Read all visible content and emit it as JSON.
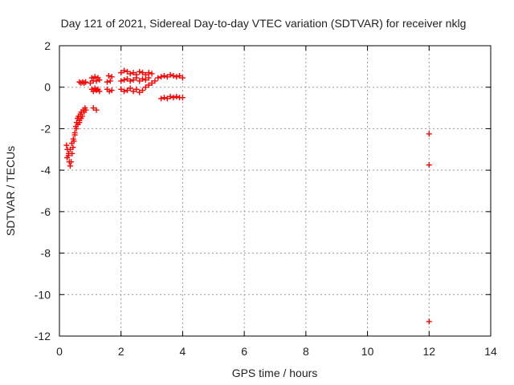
{
  "chart_data": {
    "type": "scatter",
    "title": "Day 121 of 2021, Sidereal Day-to-day VTEC variation (SDTVAR) for receiver nklg",
    "xlabel": "GPS time / hours",
    "ylabel": "SDTVAR / TECUs",
    "xlim": [
      0,
      14
    ],
    "ylim": [
      -12,
      2
    ],
    "xticks": [
      0,
      2,
      4,
      6,
      8,
      10,
      12,
      14
    ],
    "yticks": [
      2,
      0,
      -2,
      -4,
      -6,
      -8,
      -10,
      -12
    ],
    "grid": true,
    "marker": "plus",
    "color": "#ff0000",
    "series": [
      {
        "name": "SDTVAR",
        "segments": [
          {
            "x": [
              0.23,
              0.26,
              0.29,
              0.32,
              0.35,
              0.38,
              0.41,
              0.44,
              0.47,
              0.5,
              0.53,
              0.56,
              0.59,
              0.62,
              0.65,
              0.68,
              0.71,
              0.74,
              0.77,
              0.8,
              0.83,
              0.86
            ],
            "y": [
              -2.8,
              -3.0,
              -3.3,
              -3.6,
              -3.8,
              -3.6,
              -3.2,
              -2.9,
              -2.6,
              -2.2,
              -1.9,
              -1.7,
              -1.5,
              -1.4,
              -1.6,
              -1.3,
              -1.2,
              -1.4,
              -1.1,
              -1.2,
              -1.0,
              -1.1
            ]
          },
          {
            "x": [
              0.25,
              0.3,
              0.35,
              0.4,
              0.45,
              0.5,
              0.55,
              0.6,
              0.65,
              0.7
            ],
            "y": [
              -3.4,
              -3.2,
              -3.0,
              -2.7,
              -2.5,
              -2.3,
              -2.0,
              -1.8,
              -1.7,
              -1.5
            ]
          },
          {
            "x": [
              0.65,
              0.7,
              0.75,
              0.8,
              0.85
            ],
            "y": [
              0.25,
              0.2,
              0.25,
              0.2,
              0.25
            ]
          },
          {
            "x": [
              1.0,
              1.05,
              1.1,
              1.15,
              1.2,
              1.25,
              1.3
            ],
            "y": [
              0.2,
              0.45,
              0.3,
              0.5,
              0.3,
              0.45,
              0.35
            ]
          },
          {
            "x": [
              1.05,
              1.1,
              1.15,
              1.2,
              1.25,
              1.3
            ],
            "y": [
              -0.1,
              -0.2,
              -0.05,
              -0.15,
              -0.1,
              -0.2
            ]
          },
          {
            "x": [
              1.1,
              1.2
            ],
            "y": [
              -1.0,
              -1.1
            ]
          },
          {
            "x": [
              1.55,
              1.6,
              1.65,
              1.7
            ],
            "y": [
              0.25,
              0.55,
              0.3,
              0.5
            ]
          },
          {
            "x": [
              1.55,
              1.62,
              1.7
            ],
            "y": [
              -0.1,
              -0.2,
              -0.15
            ]
          },
          {
            "x": [
              2.0,
              2.1,
              2.2,
              2.3,
              2.4,
              2.5,
              2.6,
              2.7,
              2.8,
              2.9,
              3.0
            ],
            "y": [
              0.7,
              0.8,
              0.75,
              0.65,
              0.7,
              0.6,
              0.75,
              0.7,
              0.6,
              0.7,
              0.65
            ]
          },
          {
            "x": [
              2.0,
              2.1,
              2.2,
              2.3,
              2.4,
              2.5,
              2.6,
              2.7,
              2.8,
              2.9
            ],
            "y": [
              0.3,
              0.35,
              0.4,
              0.3,
              0.35,
              0.45,
              0.3,
              0.4,
              0.35,
              0.45
            ]
          },
          {
            "x": [
              2.0,
              2.1,
              2.2,
              2.3,
              2.4,
              2.5,
              2.6,
              2.7
            ],
            "y": [
              -0.1,
              -0.2,
              -0.15,
              -0.05,
              -0.2,
              -0.1,
              -0.25,
              -0.15
            ]
          },
          {
            "x": [
              2.8,
              2.9,
              3.0,
              3.1,
              3.2,
              3.3,
              3.4,
              3.5,
              3.6,
              3.7,
              3.8,
              3.9,
              4.0
            ],
            "y": [
              0.0,
              0.1,
              0.2,
              0.3,
              0.45,
              0.5,
              0.55,
              0.5,
              0.6,
              0.55,
              0.5,
              0.55,
              0.45
            ]
          },
          {
            "x": [
              3.3,
              3.4,
              3.5,
              3.6,
              3.7,
              3.8,
              3.9,
              4.0
            ],
            "y": [
              -0.55,
              -0.5,
              -0.55,
              -0.45,
              -0.5,
              -0.45,
              -0.5,
              -0.5
            ]
          },
          {
            "x": [
              12.0,
              12.0,
              12.0
            ],
            "y": [
              -2.25,
              -3.75,
              -11.3
            ]
          }
        ]
      }
    ]
  }
}
